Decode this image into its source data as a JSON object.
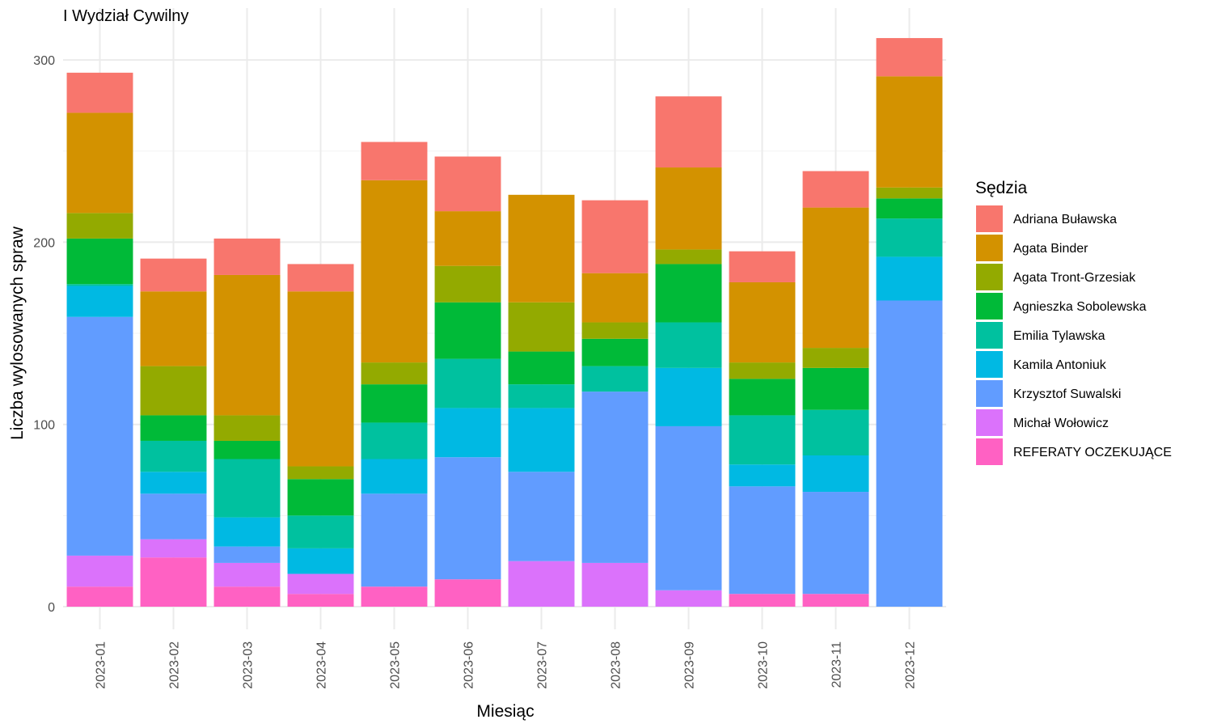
{
  "chart_data": {
    "type": "bar",
    "stacked": true,
    "title": "I Wydział Cywilny",
    "xlabel": "Miesiąc",
    "ylabel": "Liczba wylosowanych spraw",
    "ylim": [
      0,
      300
    ],
    "yticks": [
      0,
      100,
      200,
      300
    ],
    "grid": true,
    "legend_title": "Sędzia",
    "legend_position": "right",
    "categories": [
      "2023-01",
      "2023-02",
      "2023-03",
      "2023-04",
      "2023-05",
      "2023-06",
      "2023-07",
      "2023-08",
      "2023-09",
      "2023-10",
      "2023-11",
      "2023-12"
    ],
    "series": [
      {
        "name": "Adriana Buławska",
        "color": "#F8766D",
        "values": [
          22,
          18,
          20,
          15,
          21,
          30,
          0,
          40,
          39,
          17,
          20,
          21
        ]
      },
      {
        "name": "Agata Binder",
        "color": "#D39200",
        "values": [
          55,
          41,
          77,
          96,
          100,
          30,
          59,
          27,
          45,
          44,
          77,
          61
        ]
      },
      {
        "name": "Agata Tront-Grzesiak",
        "color": "#93AA00",
        "values": [
          14,
          27,
          14,
          7,
          12,
          20,
          27,
          9,
          8,
          9,
          11,
          6
        ]
      },
      {
        "name": "Agnieszka Sobolewska",
        "color": "#00BA38",
        "values": [
          25,
          14,
          10,
          20,
          21,
          31,
          18,
          15,
          32,
          20,
          23,
          11
        ]
      },
      {
        "name": "Emilia Tylawska",
        "color": "#00C19F",
        "values": [
          1,
          17,
          32,
          18,
          20,
          27,
          13,
          14,
          25,
          27,
          25,
          21
        ]
      },
      {
        "name": "Kamila Antoniuk",
        "color": "#00B9E3",
        "values": [
          17,
          12,
          16,
          14,
          19,
          27,
          35,
          0,
          32,
          12,
          20,
          24
        ]
      },
      {
        "name": "Krzysztof Suwalski",
        "color": "#619CFF",
        "values": [
          131,
          25,
          9,
          0,
          51,
          67,
          49,
          94,
          90,
          59,
          56,
          168
        ]
      },
      {
        "name": "Michał Wołowicz",
        "color": "#DB72FB",
        "values": [
          17,
          10,
          13,
          11,
          0,
          0,
          25,
          24,
          9,
          0,
          0,
          0
        ]
      },
      {
        "name": "REFERATY OCZEKUJĄCE",
        "color": "#FF61C3",
        "values": [
          11,
          27,
          11,
          7,
          11,
          15,
          0,
          0,
          0,
          7,
          7,
          0
        ]
      }
    ]
  }
}
